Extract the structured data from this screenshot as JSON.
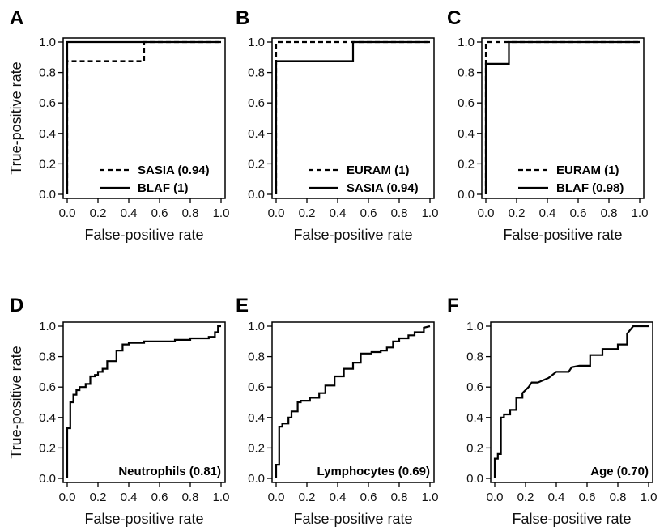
{
  "chart_data": [
    {
      "panel": "A",
      "type": "line",
      "xlabel": "False-positive rate",
      "ylabel": "True-positive rate",
      "xlim": [
        0,
        1
      ],
      "ylim": [
        0,
        1
      ],
      "xticks": [
        "0.0",
        "0.2",
        "0.4",
        "0.6",
        "0.8",
        "1.0"
      ],
      "yticks": [
        "0.0",
        "0.2",
        "0.4",
        "0.6",
        "0.8",
        "1.0"
      ],
      "legend_position": "bottom-right",
      "series": [
        {
          "name": "SASIA (0.94)",
          "style": "dashed",
          "x": [
            0,
            0,
            0.5,
            0.5,
            1.0
          ],
          "y": [
            0,
            0.875,
            0.875,
            1.0,
            1.0
          ]
        },
        {
          "name": "BLAF (1)",
          "style": "solid",
          "x": [
            0,
            0,
            1.0
          ],
          "y": [
            0,
            1.0,
            1.0
          ]
        }
      ]
    },
    {
      "panel": "B",
      "type": "line",
      "xlabel": "False-positive rate",
      "ylabel": "",
      "xlim": [
        0,
        1
      ],
      "ylim": [
        0,
        1
      ],
      "xticks": [
        "0.0",
        "0.2",
        "0.4",
        "0.6",
        "0.8",
        "1.0"
      ],
      "yticks": [
        "0.0",
        "0.2",
        "0.4",
        "0.6",
        "0.8",
        "1.0"
      ],
      "legend_position": "bottom-right",
      "series": [
        {
          "name": "EURAM (1)",
          "style": "dashed",
          "x": [
            0,
            0,
            1.0
          ],
          "y": [
            0,
            1.0,
            1.0
          ]
        },
        {
          "name": "SASIA (0.94)",
          "style": "solid",
          "x": [
            0,
            0,
            0.5,
            0.5,
            1.0
          ],
          "y": [
            0,
            0.875,
            0.875,
            1.0,
            1.0
          ]
        }
      ]
    },
    {
      "panel": "C",
      "type": "line",
      "xlabel": "False-positive rate",
      "ylabel": "",
      "xlim": [
        0,
        1
      ],
      "ylim": [
        0,
        1
      ],
      "xticks": [
        "0.0",
        "0.2",
        "0.4",
        "0.6",
        "0.8",
        "1.0"
      ],
      "yticks": [
        "0.0",
        "0.2",
        "0.4",
        "0.6",
        "0.8",
        "1.0"
      ],
      "legend_position": "bottom-right",
      "series": [
        {
          "name": "EURAM (1)",
          "style": "dashed",
          "x": [
            0,
            0,
            1.0
          ],
          "y": [
            0,
            1.0,
            1.0
          ]
        },
        {
          "name": "BLAF (0.98)",
          "style": "solid",
          "x": [
            0,
            0,
            0.15,
            0.15,
            1.0
          ],
          "y": [
            0,
            0.857,
            0.857,
            1.0,
            1.0
          ]
        }
      ]
    },
    {
      "panel": "D",
      "type": "line",
      "xlabel": "False-positive rate",
      "ylabel": "True-positive rate",
      "xlim": [
        0,
        1
      ],
      "ylim": [
        0,
        1
      ],
      "xticks": [
        "0.0",
        "0.2",
        "0.4",
        "0.6",
        "0.8",
        "1.0"
      ],
      "yticks": [
        "0.0",
        "0.2",
        "0.4",
        "0.6",
        "0.8",
        "1.0"
      ],
      "legend_position": "bottom-right",
      "series": [
        {
          "name": "Neutrophils (0.81)",
          "style": "solid",
          "x": [
            0,
            0,
            0.02,
            0.02,
            0.04,
            0.04,
            0.06,
            0.06,
            0.08,
            0.08,
            0.12,
            0.12,
            0.15,
            0.15,
            0.18,
            0.18,
            0.2,
            0.2,
            0.23,
            0.23,
            0.26,
            0.26,
            0.32,
            0.32,
            0.36,
            0.36,
            0.4,
            0.4,
            0.5,
            0.5,
            0.6,
            0.6,
            0.7,
            0.7,
            0.8,
            0.8,
            0.92,
            0.92,
            0.96,
            0.96,
            0.98,
            0.98,
            1.0
          ],
          "y": [
            0,
            0.33,
            0.33,
            0.5,
            0.5,
            0.55,
            0.55,
            0.58,
            0.58,
            0.6,
            0.6,
            0.62,
            0.62,
            0.67,
            0.67,
            0.68,
            0.68,
            0.7,
            0.7,
            0.72,
            0.72,
            0.77,
            0.77,
            0.84,
            0.84,
            0.88,
            0.88,
            0.89,
            0.89,
            0.9,
            0.9,
            0.9,
            0.9,
            0.91,
            0.91,
            0.92,
            0.92,
            0.93,
            0.93,
            0.96,
            0.96,
            1.0,
            1.0
          ]
        }
      ]
    },
    {
      "panel": "E",
      "type": "line",
      "xlabel": "False-positive rate",
      "ylabel": "",
      "xlim": [
        0,
        1
      ],
      "ylim": [
        0,
        1
      ],
      "xticks": [
        "0.0",
        "0.2",
        "0.4",
        "0.6",
        "0.8",
        "1.0"
      ],
      "yticks": [
        "0.0",
        "0.2",
        "0.4",
        "0.6",
        "0.8",
        "1.0"
      ],
      "legend_position": "bottom-right",
      "series": [
        {
          "name": "Lymphocytes (0.69)",
          "style": "solid",
          "x": [
            0,
            0,
            0.02,
            0.02,
            0.04,
            0.04,
            0.08,
            0.08,
            0.1,
            0.1,
            0.14,
            0.14,
            0.16,
            0.16,
            0.22,
            0.22,
            0.28,
            0.28,
            0.32,
            0.32,
            0.38,
            0.38,
            0.44,
            0.44,
            0.5,
            0.5,
            0.55,
            0.55,
            0.62,
            0.62,
            0.68,
            0.68,
            0.72,
            0.72,
            0.76,
            0.76,
            0.8,
            0.8,
            0.86,
            0.86,
            0.9,
            0.9,
            0.96,
            0.96,
            1.0
          ],
          "y": [
            0,
            0.09,
            0.09,
            0.34,
            0.34,
            0.36,
            0.36,
            0.4,
            0.4,
            0.44,
            0.44,
            0.5,
            0.5,
            0.51,
            0.51,
            0.53,
            0.53,
            0.56,
            0.56,
            0.61,
            0.61,
            0.67,
            0.67,
            0.72,
            0.72,
            0.76,
            0.76,
            0.82,
            0.82,
            0.83,
            0.83,
            0.84,
            0.84,
            0.86,
            0.86,
            0.9,
            0.9,
            0.92,
            0.92,
            0.94,
            0.94,
            0.96,
            0.96,
            0.99,
            1.0
          ]
        }
      ]
    },
    {
      "panel": "F",
      "type": "line",
      "xlabel": "False-positive rate",
      "ylabel": "",
      "xlim": [
        0,
        1
      ],
      "ylim": [
        0,
        1
      ],
      "xticks": [
        "0.0",
        "0.2",
        "0.4",
        "0.6",
        "0.8",
        "1.0"
      ],
      "yticks": [
        "0.0",
        "0.2",
        "0.4",
        "0.6",
        "0.8",
        "1.0"
      ],
      "legend_position": "bottom-right",
      "series": [
        {
          "name": "Age (0.70)",
          "style": "solid",
          "x": [
            0,
            0,
            0.02,
            0.02,
            0.04,
            0.04,
            0.06,
            0.06,
            0.1,
            0.1,
            0.14,
            0.14,
            0.18,
            0.18,
            0.22,
            0.24,
            0.28,
            0.35,
            0.4,
            0.48,
            0.5,
            0.55,
            0.62,
            0.62,
            0.7,
            0.7,
            0.8,
            0.8,
            0.86,
            0.86,
            0.9,
            1.0
          ],
          "y": [
            0,
            0.13,
            0.13,
            0.16,
            0.16,
            0.4,
            0.4,
            0.42,
            0.42,
            0.45,
            0.45,
            0.53,
            0.53,
            0.56,
            0.6,
            0.63,
            0.63,
            0.66,
            0.7,
            0.7,
            0.73,
            0.74,
            0.74,
            0.81,
            0.81,
            0.85,
            0.85,
            0.88,
            0.88,
            0.95,
            1.0,
            1.0
          ]
        }
      ]
    }
  ]
}
